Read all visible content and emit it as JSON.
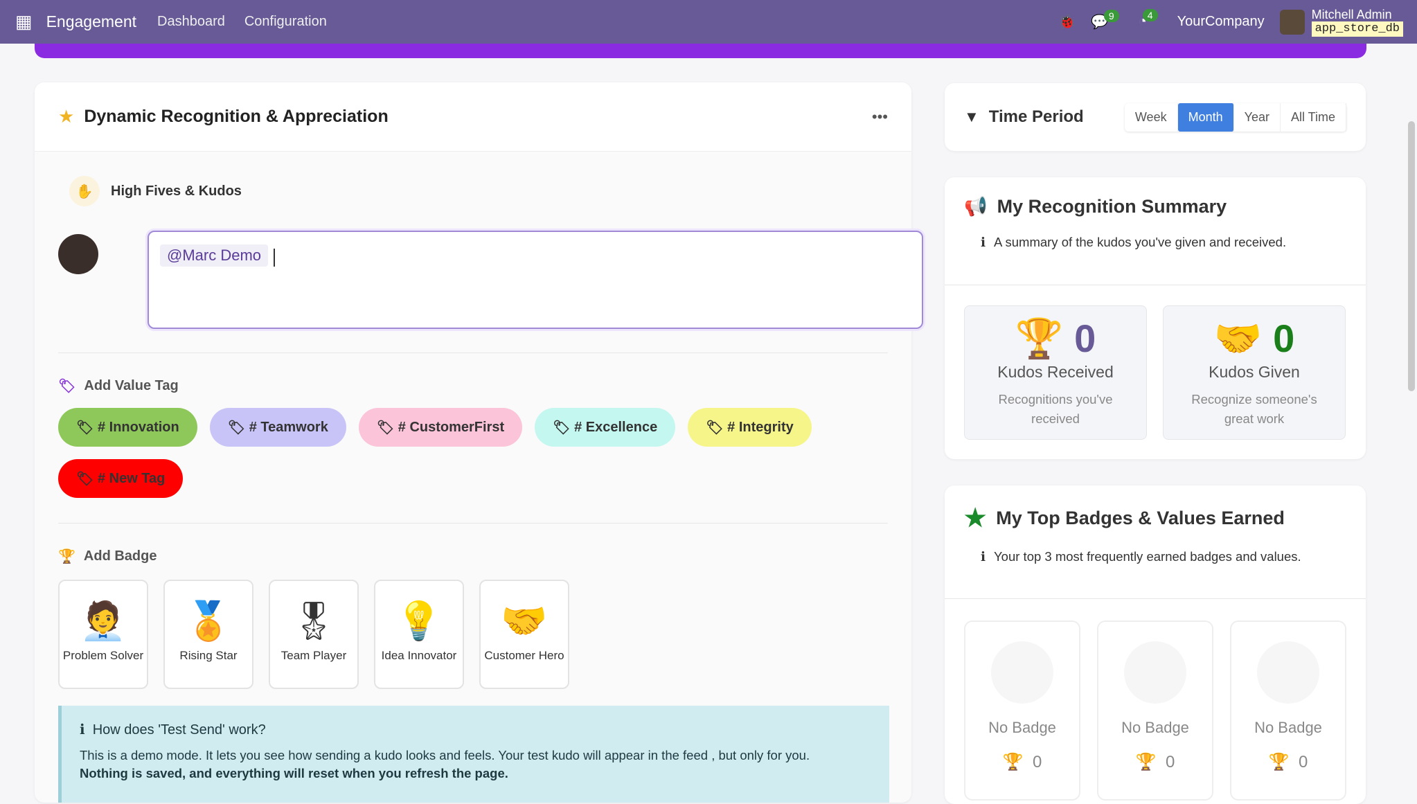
{
  "topbar": {
    "app": "Engagement",
    "nav": [
      "Dashboard",
      "Configuration"
    ],
    "messages_count": "9",
    "activities_count": "4",
    "company": "YourCompany",
    "user": "Mitchell Admin",
    "db": "app_store_db"
  },
  "main": {
    "title": "Dynamic Recognition & Appreciation",
    "section": "High Fives & Kudos",
    "mention": "@Marc Demo",
    "value_tag_label": "Add Value Tag",
    "tags": [
      {
        "label": "# Innovation",
        "color": "#8fc85a"
      },
      {
        "label": "# Teamwork",
        "color": "#c8c4f7"
      },
      {
        "label": "# CustomerFirst",
        "color": "#fbc4d8"
      },
      {
        "label": "# Excellence",
        "color": "#c4f7ef"
      },
      {
        "label": "# Integrity",
        "color": "#f6f58a"
      },
      {
        "label": "# New Tag",
        "color": "#ff0000"
      }
    ],
    "badge_label": "Add Badge",
    "badges": [
      {
        "name": "Problem Solver",
        "icon": "problem-solver-icon"
      },
      {
        "name": "Rising Star",
        "icon": "rising-star-icon"
      },
      {
        "name": "Team Player",
        "icon": "mvp-medal-icon"
      },
      {
        "name": "Idea Innovator",
        "icon": "lightbulb-icon"
      },
      {
        "name": "Customer Hero",
        "icon": "customer-hero-icon"
      }
    ],
    "info_title": "How does 'Test Send' work?",
    "info_text": "This is a demo mode. It lets you see how sending a kudo looks and feels. Your test kudo will appear in the feed , but only for you.",
    "info_bold": "Nothing is saved, and everything will reset when you refresh the page."
  },
  "time_period": {
    "title": "Time Period",
    "options": [
      "Week",
      "Month",
      "Year",
      "All Time"
    ],
    "selected": "Month"
  },
  "summary": {
    "title": "My Recognition Summary",
    "subtitle": "A summary of the kudos you've given and received.",
    "received": {
      "value": "0",
      "label": "Kudos Received",
      "desc": "Recognitions you've received",
      "color": "#675a96"
    },
    "given": {
      "value": "0",
      "label": "Kudos Given",
      "desc": "Recognize someone's great work",
      "color": "#1a7f1a"
    }
  },
  "top_badges": {
    "title": "My Top Badges & Values Earned",
    "subtitle": "Your top 3 most frequently earned badges and values.",
    "items": [
      {
        "label": "No Badge",
        "count": "0"
      },
      {
        "label": "No Badge",
        "count": "0"
      },
      {
        "label": "No Badge",
        "count": "0"
      }
    ]
  }
}
